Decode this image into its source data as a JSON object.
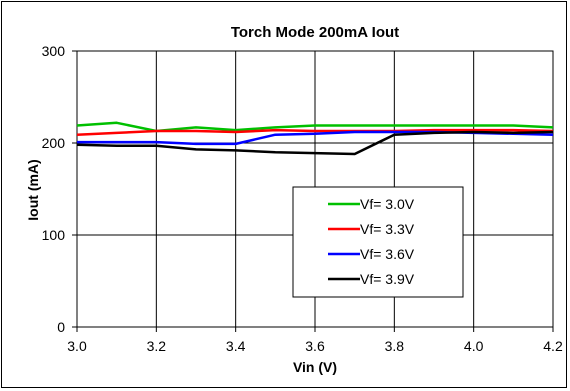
{
  "chart_data": {
    "type": "line",
    "title": "Torch Mode 200mA Iout",
    "xlabel": "Vin (V)",
    "ylabel": "Iout (mA)",
    "xlim": [
      3.0,
      4.2
    ],
    "ylim": [
      0,
      300
    ],
    "x_ticks": [
      "3.0",
      "3.2",
      "3.4",
      "3.6",
      "3.8",
      "4.0",
      "4.2"
    ],
    "y_ticks": [
      "0",
      "100",
      "200",
      "300"
    ],
    "x_tick_values": [
      3.0,
      3.2,
      3.4,
      3.6,
      3.8,
      4.0,
      4.2
    ],
    "y_tick_values": [
      0,
      100,
      200,
      300
    ],
    "grid": true,
    "legend_position": "center-right",
    "series": [
      {
        "name": "Vf= 3.0V",
        "color": "#00c000",
        "x": [
          3.0,
          3.1,
          3.2,
          3.3,
          3.4,
          3.5,
          3.6,
          3.7,
          3.8,
          3.9,
          4.0,
          4.1,
          4.2
        ],
        "y": [
          219,
          222,
          213,
          217,
          214,
          217,
          219,
          219,
          219,
          219,
          219,
          219,
          217
        ]
      },
      {
        "name": "Vf= 3.3V",
        "color": "#ff0000",
        "x": [
          3.0,
          3.1,
          3.2,
          3.3,
          3.4,
          3.5,
          3.6,
          3.7,
          3.8,
          3.9,
          4.0,
          4.1,
          4.2
        ],
        "y": [
          209,
          211,
          213,
          213,
          212,
          214,
          213,
          213,
          213,
          214,
          214,
          214,
          213
        ]
      },
      {
        "name": "Vf= 3.6V",
        "color": "#0000ff",
        "x": [
          3.0,
          3.1,
          3.2,
          3.3,
          3.4,
          3.5,
          3.6,
          3.7,
          3.8,
          3.9,
          4.0,
          4.1,
          4.2
        ],
        "y": [
          201,
          201,
          201,
          199,
          199,
          209,
          210,
          212,
          212,
          212,
          211,
          210,
          209
        ]
      },
      {
        "name": "Vf= 3.9V",
        "color": "#000000",
        "x": [
          3.0,
          3.1,
          3.2,
          3.3,
          3.4,
          3.5,
          3.6,
          3.7,
          3.8,
          3.9,
          4.0,
          4.1,
          4.2
        ],
        "y": [
          198,
          197,
          197,
          193,
          192,
          190,
          189,
          188,
          209,
          211,
          212,
          211,
          212
        ]
      }
    ]
  }
}
